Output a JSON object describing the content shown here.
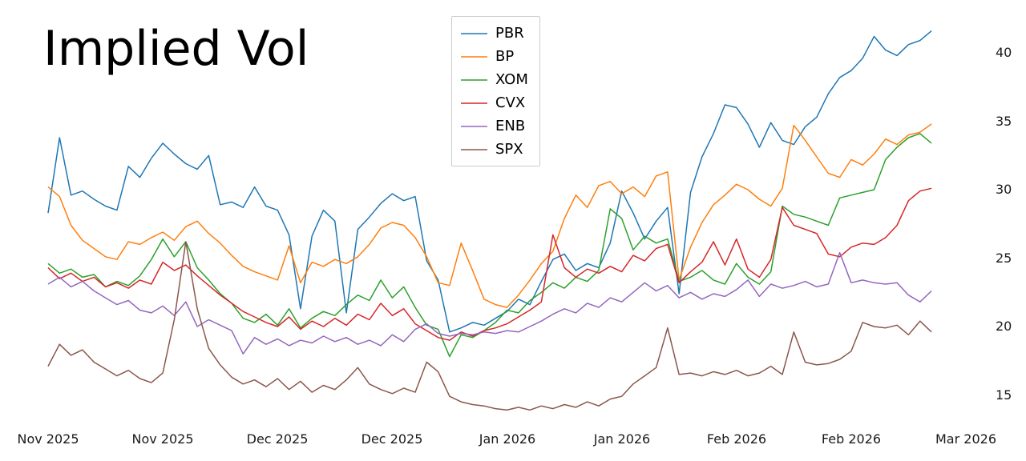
{
  "chart_data": {
    "type": "line",
    "title": "Implied Vol",
    "grid": false,
    "legend_position": "upper center-left",
    "x_tick_labels": [
      "Nov 2025",
      "Nov 2025",
      "Dec 2025",
      "Dec 2025",
      "Jan 2026",
      "Jan 2026",
      "Feb 2026",
      "Feb 2026",
      "Mar 2026"
    ],
    "x_tick_positions": [
      0,
      10,
      20,
      30,
      40,
      50,
      60,
      70,
      80
    ],
    "x_range": [
      0,
      80
    ],
    "y_ticks": [
      15,
      20,
      25,
      30,
      35,
      40
    ],
    "y_range": [
      13.5,
      42.5
    ],
    "series": [
      {
        "name": "PBR",
        "color": "#1f77b4",
        "values": [
          28.3,
          33.8,
          29.6,
          29.9,
          29.3,
          28.8,
          28.5,
          31.7,
          30.9,
          32.3,
          33.4,
          32.6,
          31.9,
          31.5,
          32.5,
          28.9,
          29.1,
          28.7,
          30.2,
          28.8,
          28.5,
          26.7,
          21.3,
          26.6,
          28.5,
          27.7,
          21.0,
          27.1,
          28.0,
          29.0,
          29.7,
          29.2,
          29.5,
          24.8,
          23.4,
          19.6,
          19.9,
          20.3,
          20.1,
          20.6,
          21.1,
          22.0,
          21.6,
          23.3,
          24.9,
          25.3,
          24.1,
          24.6,
          24.3,
          26.1,
          29.9,
          28.3,
          26.4,
          27.7,
          28.7,
          22.4,
          29.8,
          32.4,
          34.1,
          36.2,
          36.0,
          34.8,
          33.1,
          34.9,
          33.6,
          33.3,
          34.6,
          35.3,
          37.0,
          38.2,
          38.7,
          39.6,
          41.2,
          40.2,
          39.8,
          40.6,
          40.9,
          41.6
        ]
      },
      {
        "name": "BP",
        "color": "#ff7f0e",
        "values": [
          30.2,
          29.5,
          27.4,
          26.3,
          25.7,
          25.1,
          24.9,
          26.2,
          26.0,
          26.5,
          26.9,
          26.3,
          27.3,
          27.7,
          26.8,
          26.1,
          25.2,
          24.4,
          24.0,
          23.7,
          23.4,
          25.9,
          23.2,
          24.7,
          24.4,
          24.9,
          24.6,
          25.1,
          26.0,
          27.2,
          27.6,
          27.4,
          26.5,
          25.1,
          23.2,
          23.0,
          26.1,
          24.1,
          22.0,
          21.6,
          21.4,
          22.3,
          23.4,
          24.6,
          25.5,
          27.9,
          29.6,
          28.7,
          30.3,
          30.6,
          29.7,
          30.2,
          29.5,
          31.0,
          31.3,
          23.4,
          25.8,
          27.6,
          28.9,
          29.6,
          30.4,
          30.0,
          29.3,
          28.8,
          30.1,
          34.7,
          33.6,
          32.4,
          31.2,
          30.9,
          32.2,
          31.8,
          32.6,
          33.7,
          33.3,
          34.0,
          34.2,
          34.8
        ]
      },
      {
        "name": "XOM",
        "color": "#2ca02c",
        "values": [
          24.6,
          23.9,
          24.2,
          23.6,
          23.8,
          22.9,
          23.3,
          23.0,
          23.7,
          24.9,
          26.4,
          25.1,
          26.2,
          24.3,
          23.4,
          22.4,
          21.7,
          20.6,
          20.3,
          20.9,
          20.1,
          21.3,
          19.9,
          20.6,
          21.1,
          20.8,
          21.6,
          22.3,
          21.9,
          23.4,
          22.1,
          22.9,
          21.4,
          20.1,
          19.8,
          17.8,
          19.4,
          19.2,
          19.7,
          20.3,
          21.2,
          21.0,
          21.9,
          22.5,
          23.2,
          22.8,
          23.6,
          23.3,
          24.1,
          28.6,
          27.9,
          25.6,
          26.6,
          26.1,
          26.4,
          23.3,
          23.6,
          24.1,
          23.4,
          23.1,
          24.6,
          23.6,
          23.1,
          24.0,
          28.8,
          28.2,
          28.0,
          27.7,
          27.4,
          29.4,
          29.6,
          29.8,
          30.0,
          32.2,
          33.1,
          33.8,
          34.1,
          33.4
        ]
      },
      {
        "name": "CVX",
        "color": "#d62728",
        "values": [
          24.3,
          23.5,
          23.9,
          23.3,
          23.6,
          22.9,
          23.2,
          22.8,
          23.4,
          23.1,
          24.7,
          24.1,
          24.5,
          23.7,
          23.0,
          22.3,
          21.7,
          21.1,
          20.7,
          20.3,
          20.0,
          20.7,
          19.8,
          20.4,
          20.0,
          20.6,
          20.1,
          20.9,
          20.5,
          21.7,
          20.8,
          21.3,
          20.2,
          19.7,
          19.2,
          19.0,
          19.6,
          19.3,
          19.7,
          19.9,
          20.2,
          20.7,
          21.2,
          21.8,
          26.7,
          24.3,
          23.6,
          24.2,
          23.9,
          24.4,
          24.0,
          25.2,
          24.8,
          25.7,
          26.0,
          23.2,
          24.0,
          24.7,
          26.2,
          24.5,
          26.4,
          24.2,
          23.6,
          24.9,
          28.7,
          27.4,
          27.1,
          26.8,
          25.3,
          25.1,
          25.8,
          26.1,
          26.0,
          26.5,
          27.4,
          29.2,
          29.9,
          30.1
        ]
      },
      {
        "name": "ENB",
        "color": "#9467bd",
        "values": [
          23.1,
          23.6,
          22.9,
          23.3,
          22.6,
          22.1,
          21.6,
          21.9,
          21.2,
          21.0,
          21.5,
          20.8,
          21.8,
          20.0,
          20.5,
          20.1,
          19.7,
          18.0,
          19.2,
          18.7,
          19.1,
          18.6,
          19.0,
          18.8,
          19.3,
          18.9,
          19.2,
          18.7,
          19.0,
          18.6,
          19.4,
          18.9,
          19.8,
          20.2,
          19.5,
          19.3,
          19.5,
          19.4,
          19.6,
          19.5,
          19.7,
          19.6,
          20.0,
          20.4,
          20.9,
          21.3,
          21.0,
          21.7,
          21.4,
          22.1,
          21.8,
          22.5,
          23.2,
          22.6,
          23.0,
          22.1,
          22.5,
          22.0,
          22.4,
          22.2,
          22.7,
          23.4,
          22.2,
          23.1,
          22.8,
          23.0,
          23.3,
          22.9,
          23.1,
          25.4,
          23.2,
          23.4,
          23.2,
          23.1,
          23.2,
          22.3,
          21.8,
          22.6
        ]
      },
      {
        "name": "SPX",
        "color": "#8c564b",
        "values": [
          17.1,
          18.7,
          17.9,
          18.3,
          17.4,
          16.9,
          16.4,
          16.8,
          16.2,
          15.9,
          16.6,
          20.5,
          26.2,
          21.3,
          18.4,
          17.2,
          16.3,
          15.8,
          16.1,
          15.6,
          16.2,
          15.4,
          16.0,
          15.2,
          15.7,
          15.4,
          16.1,
          17.0,
          15.8,
          15.4,
          15.1,
          15.5,
          15.2,
          17.4,
          16.7,
          14.9,
          14.5,
          14.3,
          14.2,
          14.0,
          13.9,
          14.1,
          13.9,
          14.2,
          14.0,
          14.3,
          14.1,
          14.5,
          14.2,
          14.7,
          14.9,
          15.8,
          16.4,
          17.0,
          19.9,
          16.5,
          16.6,
          16.4,
          16.7,
          16.5,
          16.8,
          16.4,
          16.6,
          17.1,
          16.5,
          19.6,
          17.4,
          17.2,
          17.3,
          17.6,
          18.2,
          20.3,
          20.0,
          19.9,
          20.1,
          19.4,
          20.4,
          19.6
        ]
      }
    ]
  }
}
